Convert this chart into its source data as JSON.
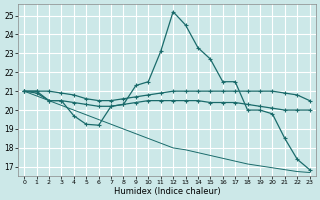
{
  "xlabel": "Humidex (Indice chaleur)",
  "background_color": "#cce8e8",
  "grid_color": "#ffffff",
  "line_color": "#1a6b6b",
  "xlim": [
    -0.5,
    23.5
  ],
  "ylim": [
    16.5,
    25.6
  ],
  "yticks": [
    17,
    18,
    19,
    20,
    21,
    22,
    23,
    24,
    25
  ],
  "xticks": [
    0,
    1,
    2,
    3,
    4,
    5,
    6,
    7,
    8,
    9,
    10,
    11,
    12,
    13,
    14,
    15,
    16,
    17,
    18,
    19,
    20,
    21,
    22,
    23
  ],
  "series": [
    {
      "x": [
        0,
        1,
        2,
        3,
        4,
        5,
        6,
        7,
        8,
        9,
        10,
        11,
        12,
        13,
        14,
        15,
        16,
        17,
        18,
        19,
        20,
        21,
        22,
        23
      ],
      "y": [
        21.0,
        20.9,
        20.5,
        20.5,
        19.7,
        19.25,
        19.2,
        20.2,
        20.3,
        21.3,
        21.5,
        23.1,
        25.2,
        24.5,
        23.3,
        22.7,
        21.5,
        21.5,
        20.0,
        20.0,
        19.8,
        18.5,
        17.4,
        16.85
      ],
      "marker": "+",
      "linestyle": "-",
      "linewidth": 0.9,
      "markersize": 3.5
    },
    {
      "x": [
        0,
        1,
        2,
        3,
        4,
        5,
        6,
        7,
        8,
        9,
        10,
        11,
        12,
        13,
        14,
        15,
        16,
        17,
        18,
        19,
        20,
        21,
        22,
        23
      ],
      "y": [
        21.0,
        21.0,
        20.5,
        20.5,
        20.4,
        20.3,
        20.2,
        20.2,
        20.3,
        20.4,
        20.5,
        20.5,
        20.5,
        20.5,
        20.5,
        20.4,
        20.4,
        20.4,
        20.3,
        20.2,
        20.1,
        20.0,
        20.0,
        20.0
      ],
      "marker": "+",
      "linestyle": "-",
      "linewidth": 0.9,
      "markersize": 3.5
    },
    {
      "x": [
        0,
        1,
        2,
        3,
        4,
        5,
        6,
        7,
        8,
        9,
        10,
        11,
        12,
        13,
        14,
        15,
        16,
        17,
        18,
        19,
        20,
        21,
        22,
        23
      ],
      "y": [
        21.0,
        21.0,
        21.0,
        20.9,
        20.8,
        20.6,
        20.5,
        20.5,
        20.6,
        20.7,
        20.8,
        20.9,
        21.0,
        21.0,
        21.0,
        21.0,
        21.0,
        21.0,
        21.0,
        21.0,
        21.0,
        20.9,
        20.8,
        20.5
      ],
      "marker": "+",
      "linestyle": "-",
      "linewidth": 0.9,
      "markersize": 3.5
    },
    {
      "x": [
        0,
        1,
        2,
        3,
        4,
        5,
        6,
        7,
        8,
        9,
        10,
        11,
        12,
        13,
        14,
        15,
        16,
        17,
        18,
        19,
        20,
        21,
        22,
        23
      ],
      "y": [
        21.0,
        20.75,
        20.5,
        20.25,
        20.0,
        19.75,
        19.5,
        19.25,
        19.0,
        18.75,
        18.5,
        18.25,
        18.0,
        17.9,
        17.75,
        17.6,
        17.45,
        17.3,
        17.15,
        17.05,
        16.95,
        16.85,
        16.75,
        16.7
      ],
      "marker": null,
      "linestyle": "-",
      "linewidth": 0.7,
      "markersize": 0
    }
  ]
}
